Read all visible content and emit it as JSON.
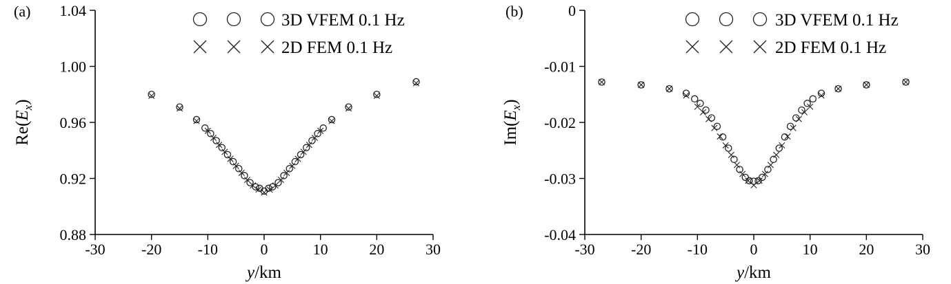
{
  "chart_data": [
    {
      "panel": "(a)",
      "type": "scatter",
      "xlabel_italic": "y",
      "xlabel_rest": "/km",
      "ylabel_base": "Re(",
      "ylabel_var": "E",
      "ylabel_sub": "x",
      "ylabel_close": ")",
      "xlim": [
        -30,
        30
      ],
      "ylim": [
        0.88,
        1.04
      ],
      "xticks": [
        -30,
        -20,
        -10,
        0,
        10,
        20,
        30
      ],
      "xtick_labels": [
        "-30",
        "-20",
        "-10",
        "0",
        "10",
        "20",
        "30"
      ],
      "yticks": [
        0.88,
        0.92,
        0.96,
        1.0,
        1.04
      ],
      "ytick_labels": [
        "0.88",
        "0.92",
        "0.96",
        "1.00",
        "1.04"
      ],
      "legend": "top-right",
      "grid": false,
      "series": [
        {
          "name": "3D VFEM 0.1 Hz",
          "marker": "circle",
          "x": [
            -20,
            -15,
            -12,
            -10.5,
            -9.5,
            -8.5,
            -7.5,
            -6.5,
            -5.5,
            -4.5,
            -3.5,
            -2.5,
            -1.5,
            -0.8,
            0,
            0.8,
            1.5,
            2.5,
            3.5,
            4.5,
            5.5,
            6.5,
            7.5,
            8.5,
            9.5,
            10.5,
            12,
            15,
            20,
            27
          ],
          "y": [
            0.98,
            0.971,
            0.962,
            0.956,
            0.952,
            0.947,
            0.942,
            0.937,
            0.932,
            0.927,
            0.922,
            0.917,
            0.914,
            0.913,
            0.911,
            0.913,
            0.914,
            0.917,
            0.922,
            0.927,
            0.932,
            0.937,
            0.942,
            0.947,
            0.952,
            0.956,
            0.962,
            0.971,
            0.98,
            0.989
          ]
        },
        {
          "name": "2D FEM 0.1 Hz",
          "marker": "x",
          "x": [
            -20,
            -15,
            -12,
            -10,
            -9,
            -8,
            -7,
            -6,
            -5,
            -4,
            -3,
            -2,
            -1,
            0,
            1,
            2,
            3,
            4,
            5,
            6,
            7,
            8,
            9,
            10,
            12,
            15,
            20,
            27
          ],
          "y": [
            0.979,
            0.97,
            0.961,
            0.954,
            0.949,
            0.944,
            0.939,
            0.934,
            0.929,
            0.924,
            0.919,
            0.915,
            0.912,
            0.91,
            0.912,
            0.915,
            0.919,
            0.924,
            0.929,
            0.934,
            0.939,
            0.944,
            0.949,
            0.954,
            0.961,
            0.97,
            0.979,
            0.988
          ]
        }
      ]
    },
    {
      "panel": "(b)",
      "type": "scatter",
      "xlabel_italic": "y",
      "xlabel_rest": "/km",
      "ylabel_base": "Im(",
      "ylabel_var": "E",
      "ylabel_sub": "x",
      "ylabel_close": ")",
      "xlim": [
        -30,
        30
      ],
      "ylim": [
        -0.04,
        0
      ],
      "xticks": [
        -30,
        -20,
        -10,
        0,
        10,
        20,
        30
      ],
      "xtick_labels": [
        "-30",
        "-20",
        "-10",
        "0",
        "10",
        "20",
        "30"
      ],
      "yticks": [
        -0.04,
        -0.03,
        -0.02,
        -0.01,
        0
      ],
      "ytick_labels": [
        "-0.04",
        "-0.03",
        "-0.02",
        "-0.01",
        "0"
      ],
      "legend": "top-right",
      "grid": false,
      "series": [
        {
          "name": "3D VFEM 0.1 Hz",
          "marker": "circle",
          "x": [
            -27,
            -20,
            -15,
            -12,
            -10.5,
            -9.5,
            -8.5,
            -7.5,
            -6.5,
            -5.5,
            -4.5,
            -3.5,
            -2.5,
            -1.5,
            -0.8,
            0,
            0.8,
            1.5,
            2.5,
            3.5,
            4.5,
            5.5,
            6.5,
            7.5,
            8.5,
            9.5,
            10.5,
            12,
            15,
            20,
            27
          ],
          "y": [
            -0.0128,
            -0.0133,
            -0.014,
            -0.0148,
            -0.0158,
            -0.0166,
            -0.0178,
            -0.0192,
            -0.0207,
            -0.0226,
            -0.0246,
            -0.0266,
            -0.0284,
            -0.0298,
            -0.0304,
            -0.0305,
            -0.0304,
            -0.0298,
            -0.0284,
            -0.0266,
            -0.0246,
            -0.0226,
            -0.0207,
            -0.0192,
            -0.0178,
            -0.0166,
            -0.0158,
            -0.0148,
            -0.014,
            -0.0133,
            -0.0128
          ]
        },
        {
          "name": "2D FEM 0.1 Hz",
          "marker": "x",
          "x": [
            -27,
            -20,
            -15,
            -12,
            -10,
            -9,
            -8,
            -7,
            -6,
            -5,
            -4,
            -3,
            -2,
            -1,
            0,
            1,
            2,
            3,
            4,
            5,
            6,
            7,
            8,
            9,
            10,
            12,
            15,
            20,
            27
          ],
          "y": [
            -0.0128,
            -0.0133,
            -0.014,
            -0.0152,
            -0.0172,
            -0.0182,
            -0.0194,
            -0.021,
            -0.0225,
            -0.0241,
            -0.0258,
            -0.0276,
            -0.0292,
            -0.0304,
            -0.0312,
            -0.0304,
            -0.0292,
            -0.0276,
            -0.0258,
            -0.0241,
            -0.0225,
            -0.021,
            -0.0194,
            -0.0182,
            -0.0172,
            -0.0152,
            -0.014,
            -0.0133,
            -0.0128
          ]
        }
      ]
    }
  ]
}
